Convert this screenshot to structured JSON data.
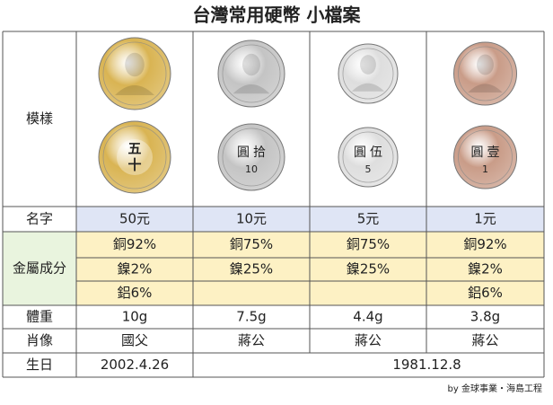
{
  "title": "台灣常用硬幣 小檔案",
  "table": {
    "row_labels": [
      "模樣",
      "名字",
      "金屬成分",
      "體重",
      "肖像",
      "生日"
    ],
    "coins": [
      {
        "name": "50元",
        "metal": [
          "銅92%",
          "鎳2%",
          "鋁6%"
        ],
        "weight": "10g",
        "portrait": "國父",
        "color": "#d9b453",
        "reverse_text": [
          "五",
          "十"
        ]
      },
      {
        "name": "10元",
        "metal": [
          "銅75%",
          "鎳25%"
        ],
        "weight": "7.5g",
        "portrait": "蔣公",
        "color": "#c4c4c4",
        "reverse_text": [
          "圓",
          "拾",
          "10"
        ]
      },
      {
        "name": "5元",
        "metal": [
          "銅75%",
          "鎳25%"
        ],
        "weight": "4.4g",
        "portrait": "蔣公",
        "color": "#dedede",
        "reverse_text": [
          "圓",
          "伍",
          "5"
        ]
      },
      {
        "name": "1元",
        "metal": [
          "銅92%",
          "鎳2%",
          "鋁6%"
        ],
        "weight": "3.8g",
        "portrait": "蔣公",
        "color": "#c99c88",
        "reverse_text": [
          "圓",
          "壹",
          "1"
        ]
      }
    ],
    "birthdays": [
      "2002.4.26",
      "1981.12.8"
    ]
  },
  "footer": "by 金球事業・海島工程"
}
